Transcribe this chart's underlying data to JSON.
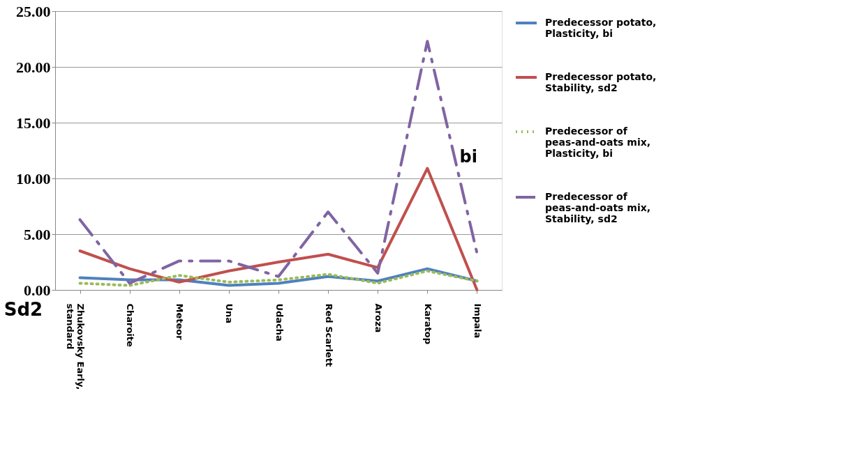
{
  "chart_data": {
    "type": "line",
    "categories": [
      "Zhukovsky Early, standard",
      "Charoite",
      "Meteor",
      "Una",
      "Udacha",
      "Red Scarlett",
      "Aroza",
      "Karatop",
      "Impala"
    ],
    "series": [
      {
        "name": "Predecessor potato, Plasticity, bi",
        "color": "#4f81bd",
        "line_style": "solid",
        "values": [
          1.1,
          0.9,
          0.9,
          0.4,
          0.6,
          1.2,
          0.8,
          1.9,
          0.8
        ]
      },
      {
        "name": "Predecessor potato, Stability, sd2",
        "color": "#c0504d",
        "line_style": "solid",
        "values": [
          3.5,
          1.9,
          0.7,
          1.7,
          2.5,
          3.2,
          2.0,
          10.9,
          0.0
        ]
      },
      {
        "name": "Predecessor of peas-and-oats mix, Plasticity, bi",
        "color": "#9bbb59",
        "line_style": "dotted",
        "values": [
          0.6,
          0.4,
          1.3,
          0.7,
          0.9,
          1.4,
          0.6,
          1.7,
          0.8
        ]
      },
      {
        "name": "Predecessor of peas-and-oats mix, Stability, sd2",
        "color": "#8064a2",
        "line_style": "dashed",
        "values": [
          6.3,
          0.6,
          2.6,
          2.6,
          1.2,
          7.0,
          1.5,
          22.3,
          3.3
        ]
      }
    ],
    "ylim": [
      0,
      25
    ],
    "yticks": [
      {
        "value": 0,
        "label": "0.00"
      },
      {
        "value": 5,
        "label": "5.00"
      },
      {
        "value": 10,
        "label": "10.00"
      },
      {
        "value": 15,
        "label": "15.00"
      },
      {
        "value": 20,
        "label": "20.00"
      },
      {
        "value": 25,
        "label": "25.00"
      }
    ],
    "grid": "y",
    "legend": "right",
    "marker": "none",
    "annotations": [
      "Sd2",
      "bi"
    ]
  }
}
